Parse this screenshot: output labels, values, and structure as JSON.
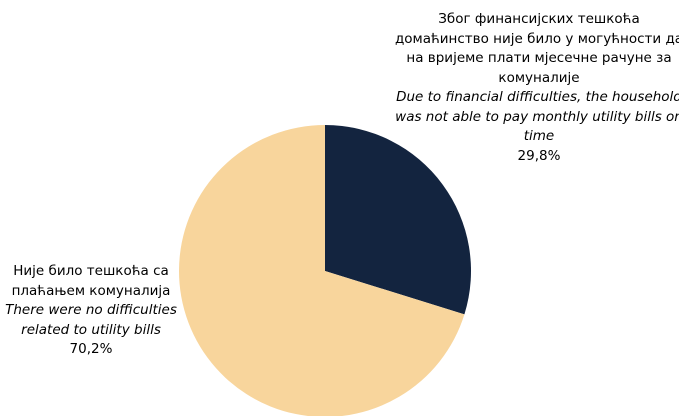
{
  "chart_data": {
    "type": "pie",
    "categories": [
      "Због финансијских тешкоћа домаћинство није било у могућности да на вријеме плати мјесечне рачуне за комуналије",
      "Није било тешкоћа са плаћањем комуналија"
    ],
    "categories_translation": [
      "Due to financial difficulties, the household was not able to pay monthly utility bills on time",
      "There were no difficulties related to utility bills"
    ],
    "values": [
      29.8,
      70.2
    ],
    "value_labels": [
      "29,8%",
      "70,2%"
    ],
    "colors": [
      "#13243f",
      "#f8d59c"
    ]
  }
}
